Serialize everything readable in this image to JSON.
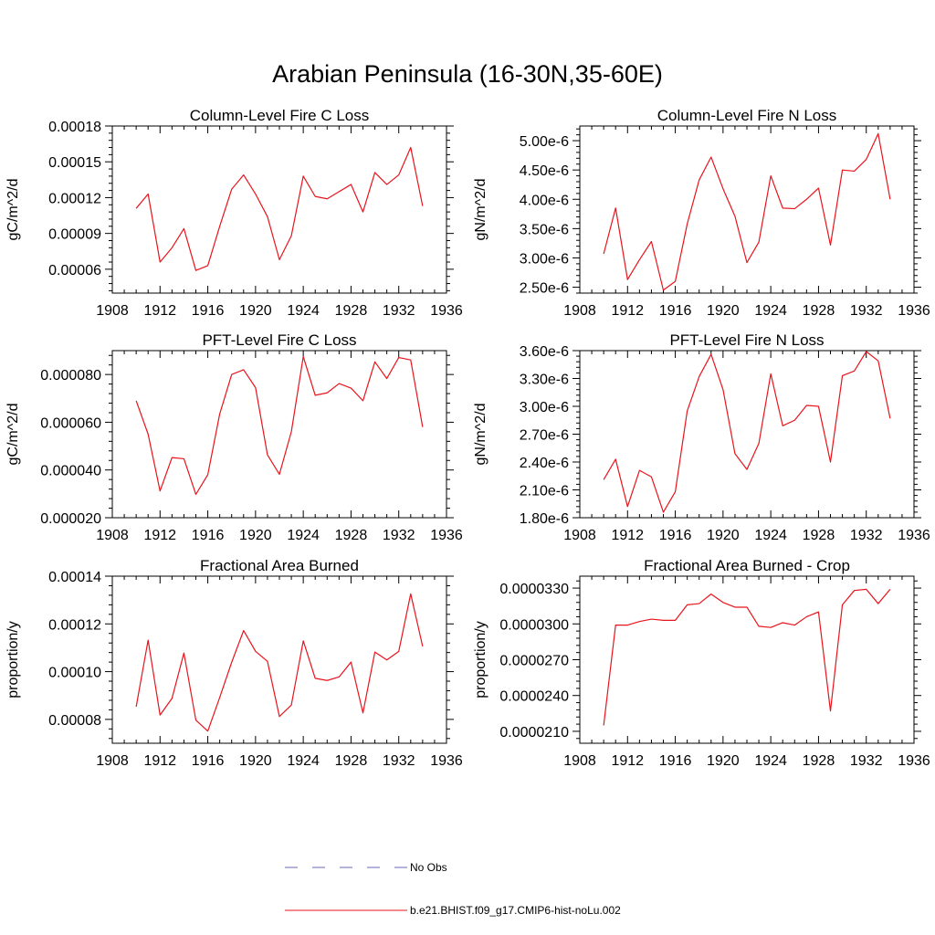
{
  "figure": {
    "title": "Arabian Peninsula (16-30N,35-60E)"
  },
  "chart_data": [
    {
      "type": "line",
      "title": "Column-Level Fire C Loss",
      "ylabel": "gC/m^2/d",
      "xlim": [
        1908,
        1936
      ],
      "ylim": [
        4e-05,
        0.00018
      ],
      "x_ticks": [
        1908,
        1912,
        1916,
        1920,
        1924,
        1928,
        1932,
        1936
      ],
      "y_ticks": [
        6e-05,
        9e-05,
        0.00012,
        0.00015,
        0.00018
      ],
      "y_tick_labels": [
        "0.00006",
        "0.00009",
        "0.00012",
        "0.00015",
        "0.00018"
      ],
      "x": [
        1910,
        1911,
        1912,
        1913,
        1914,
        1915,
        1916,
        1917,
        1918,
        1919,
        1920,
        1921,
        1922,
        1923,
        1924,
        1925,
        1926,
        1927,
        1928,
        1929,
        1930,
        1931,
        1932,
        1933,
        1934
      ],
      "series": [
        {
          "name": "b.e21.BHIST.f09_g17.CMIP6-hist-noLu.002",
          "color": "#e8141c",
          "values": [
            0.000111,
            0.000123,
            6.6e-05,
            7.8e-05,
            9.4e-05,
            5.9e-05,
            6.3e-05,
            9.6e-05,
            0.000127,
            0.000139,
            0.000123,
            0.000104,
            6.8e-05,
            8.8e-05,
            0.000138,
            0.000121,
            0.000119,
            0.000125,
            0.000131,
            0.000108,
            0.000141,
            0.000131,
            0.000139,
            0.000162,
            0.000113
          ]
        }
      ]
    },
    {
      "type": "line",
      "title": "Column-Level Fire N Loss",
      "ylabel": "gN/m^2/d",
      "xlim": [
        1908,
        1936
      ],
      "ylim": [
        2.4e-06,
        5.25e-06
      ],
      "x_ticks": [
        1908,
        1912,
        1916,
        1920,
        1924,
        1928,
        1932,
        1936
      ],
      "y_ticks": [
        2.5e-06,
        3e-06,
        3.5e-06,
        4e-06,
        4.5e-06,
        5e-06
      ],
      "y_tick_labels": [
        "2.50e-6",
        "3.00e-6",
        "3.50e-6",
        "4.00e-6",
        "4.50e-6",
        "5.00e-6"
      ],
      "x": [
        1910,
        1911,
        1912,
        1913,
        1914,
        1915,
        1916,
        1917,
        1918,
        1919,
        1920,
        1921,
        1922,
        1923,
        1924,
        1925,
        1926,
        1927,
        1928,
        1929,
        1930,
        1931,
        1932,
        1933,
        1934
      ],
      "series": [
        {
          "name": "b.e21.BHIST.f09_g17.CMIP6-hist-noLu.002",
          "color": "#e8141c",
          "values": [
            3.07e-06,
            3.85e-06,
            2.63e-06,
            2.97e-06,
            3.28e-06,
            2.45e-06,
            2.6e-06,
            3.58e-06,
            4.33e-06,
            4.72e-06,
            4.18e-06,
            3.71e-06,
            2.92e-06,
            3.27e-06,
            4.4e-06,
            3.85e-06,
            3.84e-06,
            4e-06,
            4.19e-06,
            3.22e-06,
            4.5e-06,
            4.48e-06,
            4.68e-06,
            5.12e-06,
            4e-06
          ]
        }
      ]
    },
    {
      "type": "line",
      "title": "PFT-Level Fire C Loss",
      "ylabel": "gC/m^2/d",
      "xlim": [
        1908,
        1936
      ],
      "ylim": [
        2e-05,
        9e-05
      ],
      "x_ticks": [
        1908,
        1912,
        1916,
        1920,
        1924,
        1928,
        1932,
        1936
      ],
      "y_ticks": [
        2e-05,
        4e-05,
        6e-05,
        8e-05
      ],
      "y_tick_labels": [
        "0.000020",
        "0.000040",
        "0.000060",
        "0.000080"
      ],
      "x": [
        1910,
        1911,
        1912,
        1913,
        1914,
        1915,
        1916,
        1917,
        1918,
        1919,
        1920,
        1921,
        1922,
        1923,
        1924,
        1925,
        1926,
        1927,
        1928,
        1929,
        1930,
        1931,
        1932,
        1933,
        1934
      ],
      "series": [
        {
          "name": "b.e21.BHIST.f09_g17.CMIP6-hist-noLu.002",
          "color": "#e8141c",
          "values": [
            6.9e-05,
            5.5e-05,
            3.12e-05,
            4.52e-05,
            4.47e-05,
            2.98e-05,
            3.8e-05,
            6.35e-05,
            8e-05,
            8.2e-05,
            7.45e-05,
            4.63e-05,
            3.82e-05,
            5.6e-05,
            8.75e-05,
            7.13e-05,
            7.23e-05,
            7.62e-05,
            7.43e-05,
            6.9e-05,
            8.53e-05,
            7.83e-05,
            8.71e-05,
            8.61e-05,
            5.8e-05
          ]
        }
      ]
    },
    {
      "type": "line",
      "title": "PFT-Level Fire N Loss",
      "ylabel": "gN/m^2/d",
      "xlim": [
        1908,
        1936
      ],
      "ylim": [
        1.8e-06,
        3.6e-06
      ],
      "x_ticks": [
        1908,
        1912,
        1916,
        1920,
        1924,
        1928,
        1932,
        1936
      ],
      "y_ticks": [
        1.8e-06,
        2.1e-06,
        2.4e-06,
        2.7e-06,
        3e-06,
        3.3e-06,
        3.6e-06
      ],
      "y_tick_labels": [
        "1.80e-6",
        "2.10e-6",
        "2.40e-6",
        "2.70e-6",
        "3.00e-6",
        "3.30e-6",
        "3.60e-6"
      ],
      "x": [
        1910,
        1911,
        1912,
        1913,
        1914,
        1915,
        1916,
        1917,
        1918,
        1919,
        1920,
        1921,
        1922,
        1923,
        1924,
        1925,
        1926,
        1927,
        1928,
        1929,
        1930,
        1931,
        1932,
        1933,
        1934
      ],
      "series": [
        {
          "name": "b.e21.BHIST.f09_g17.CMIP6-hist-noLu.002",
          "color": "#e8141c",
          "values": [
            2.21e-06,
            2.43e-06,
            1.92e-06,
            2.31e-06,
            2.24e-06,
            1.86e-06,
            2.08e-06,
            2.95e-06,
            3.32e-06,
            3.56e-06,
            3.18e-06,
            2.49e-06,
            2.32e-06,
            2.6e-06,
            3.35e-06,
            2.79e-06,
            2.85e-06,
            3.01e-06,
            3e-06,
            2.4e-06,
            3.33e-06,
            3.38e-06,
            3.59e-06,
            3.49e-06,
            2.87e-06
          ]
        }
      ]
    },
    {
      "type": "line",
      "title": "Fractional Area Burned",
      "ylabel": "proportion/y",
      "xlim": [
        1908,
        1936
      ],
      "ylim": [
        7e-05,
        0.00014
      ],
      "x_ticks": [
        1908,
        1912,
        1916,
        1920,
        1924,
        1928,
        1932,
        1936
      ],
      "y_ticks": [
        8e-05,
        0.0001,
        0.00012,
        0.00014
      ],
      "y_tick_labels": [
        "0.00008",
        "0.00010",
        "0.00012",
        "0.00014"
      ],
      "x": [
        1910,
        1911,
        1912,
        1913,
        1914,
        1915,
        1916,
        1917,
        1918,
        1919,
        1920,
        1921,
        1922,
        1923,
        1924,
        1925,
        1926,
        1927,
        1928,
        1929,
        1930,
        1931,
        1932,
        1933,
        1934
      ],
      "series": [
        {
          "name": "b.e21.BHIST.f09_g17.CMIP6-hist-noLu.002",
          "color": "#e8141c",
          "values": [
            8.53e-05,
            0.0001132,
            8.18e-05,
            8.88e-05,
            0.0001078,
            7.97e-05,
            7.51e-05,
            8.92e-05,
            0.0001039,
            0.0001172,
            0.0001085,
            0.0001043,
            8.12e-05,
            8.6e-05,
            0.0001129,
            9.72e-05,
            9.63e-05,
            9.78e-05,
            0.000104,
            8.27e-05,
            0.0001082,
            0.0001049,
            0.0001085,
            0.0001326,
            0.0001106
          ]
        }
      ]
    },
    {
      "type": "line",
      "title": "Fractional Area Burned - Crop",
      "ylabel": "proportion/y",
      "xlim": [
        1908,
        1936
      ],
      "ylim": [
        2e-05,
        3.4e-05
      ],
      "x_ticks": [
        1908,
        1912,
        1916,
        1920,
        1924,
        1928,
        1932,
        1936
      ],
      "y_ticks": [
        2.1e-05,
        2.4e-05,
        2.7e-05,
        3e-05,
        3.3e-05
      ],
      "y_tick_labels": [
        "0.0000210",
        "0.0000240",
        "0.0000270",
        "0.0000300",
        "0.0000330"
      ],
      "x": [
        1910,
        1911,
        1912,
        1913,
        1914,
        1915,
        1916,
        1917,
        1918,
        1919,
        1920,
        1921,
        1922,
        1923,
        1924,
        1925,
        1926,
        1927,
        1928,
        1929,
        1930,
        1931,
        1932,
        1933,
        1934
      ],
      "series": [
        {
          "name": "b.e21.BHIST.f09_g17.CMIP6-hist-noLu.002",
          "color": "#e8141c",
          "values": [
            2.15e-05,
            2.99e-05,
            2.99e-05,
            3.02e-05,
            3.04e-05,
            3.03e-05,
            3.03e-05,
            3.16e-05,
            3.17e-05,
            3.25e-05,
            3.18e-05,
            3.14e-05,
            3.14e-05,
            2.98e-05,
            2.97e-05,
            3.01e-05,
            2.99e-05,
            3.06e-05,
            3.1e-05,
            2.27e-05,
            3.16e-05,
            3.28e-05,
            3.29e-05,
            3.17e-05,
            3.29e-05
          ]
        }
      ]
    }
  ],
  "legend": {
    "entries": [
      {
        "label": "No Obs",
        "color": "#6a6ab4",
        "style": "dashed"
      },
      {
        "label": "b.e21.BHIST.f09_g17.CMIP6-hist-noLu.002",
        "color": "#e8141c",
        "style": "solid"
      }
    ]
  }
}
